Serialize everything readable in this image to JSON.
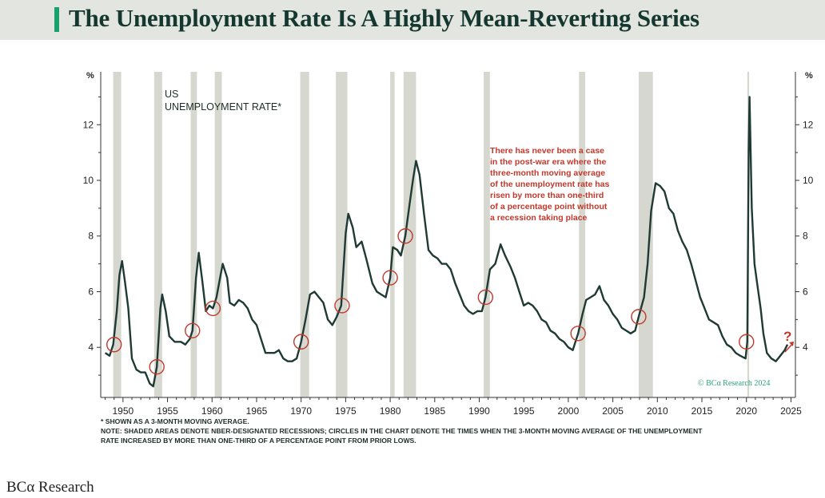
{
  "title": "The Unemployment Rate Is A Highly Mean-Reverting Series",
  "brand": "BCα Research",
  "footnotes": [
    "* SHOWN AS A 3-MONTH MOVING AVERAGE.",
    "NOTE: SHADED AREAS DENOTE NBER-DESIGNATED RECESSIONS; CIRCLES IN THE CHART DENOTE THE TIMES WHEN THE 3-MONTH MOVING AVERAGE OF THE UNEMPLOYMENT",
    "RATE INCREASED BY MORE THAN ONE-THIRD OF A PERCENTAGE POINT FROM PRIOR LOWS."
  ],
  "colors": {
    "line": "#1f3a34",
    "recession": "#d6d8d0",
    "circle": "#c0392b",
    "annotation": "#c0392b",
    "accent": "#1aa06a"
  },
  "chart_data": {
    "type": "line",
    "series_label": [
      "US",
      "UNEMPLOYMENT RATE*"
    ],
    "unit_left": "%",
    "unit_right": "%",
    "xlim": [
      1947.5,
      2025.5
    ],
    "ylim": [
      2.2,
      13.9
    ],
    "x_ticks": [
      1950,
      1955,
      1960,
      1965,
      1970,
      1975,
      1980,
      1985,
      1990,
      1995,
      2000,
      2005,
      2010,
      2015,
      2020,
      2025
    ],
    "y_ticks": [
      4,
      6,
      8,
      10,
      12
    ],
    "grid": false,
    "annotation": [
      "There has never been a case",
      "in the post-war era where the",
      "three-month moving average",
      "of the unemployment rate has",
      "risen by more than one-third",
      "of a percentage point without",
      "a recession taking place"
    ],
    "copyright": "© BCα Research 2024",
    "question_mark": "?",
    "recessions": [
      [
        1948.9,
        1949.8
      ],
      [
        1953.5,
        1954.4
      ],
      [
        1957.6,
        1958.3
      ],
      [
        1960.3,
        1961.1
      ],
      [
        1969.9,
        1970.9
      ],
      [
        1973.9,
        1975.2
      ],
      [
        1980.0,
        1980.5
      ],
      [
        1981.5,
        1982.9
      ],
      [
        1990.5,
        1991.2
      ],
      [
        2001.2,
        2001.9
      ],
      [
        2007.9,
        2009.5
      ],
      [
        2020.1,
        2020.3
      ]
    ],
    "circles": [
      [
        1949.0,
        4.1
      ],
      [
        1953.8,
        3.3
      ],
      [
        1957.8,
        4.6
      ],
      [
        1960.1,
        5.4
      ],
      [
        1970.0,
        4.2
      ],
      [
        1974.6,
        5.5
      ],
      [
        1980.0,
        6.5
      ],
      [
        1981.7,
        8.0
      ],
      [
        1990.7,
        5.8
      ],
      [
        2001.1,
        4.5
      ],
      [
        2007.9,
        5.1
      ],
      [
        2020.0,
        4.2
      ]
    ],
    "series": [
      {
        "values": [
          [
            1948.0,
            3.8
          ],
          [
            1948.5,
            3.7
          ],
          [
            1948.9,
            4.1
          ],
          [
            1949.3,
            5.3
          ],
          [
            1949.6,
            6.6
          ],
          [
            1949.9,
            7.1
          ],
          [
            1950.2,
            6.4
          ],
          [
            1950.6,
            5.4
          ],
          [
            1951.0,
            3.6
          ],
          [
            1951.5,
            3.2
          ],
          [
            1952.0,
            3.1
          ],
          [
            1952.5,
            3.1
          ],
          [
            1953.0,
            2.7
          ],
          [
            1953.4,
            2.6
          ],
          [
            1953.8,
            3.3
          ],
          [
            1954.2,
            5.4
          ],
          [
            1954.4,
            5.9
          ],
          [
            1954.8,
            5.3
          ],
          [
            1955.2,
            4.4
          ],
          [
            1955.8,
            4.2
          ],
          [
            1956.5,
            4.2
          ],
          [
            1957.0,
            4.1
          ],
          [
            1957.5,
            4.3
          ],
          [
            1957.8,
            4.6
          ],
          [
            1958.2,
            6.5
          ],
          [
            1958.5,
            7.4
          ],
          [
            1958.9,
            6.4
          ],
          [
            1959.3,
            5.3
          ],
          [
            1959.7,
            5.5
          ],
          [
            1960.1,
            5.4
          ],
          [
            1960.5,
            5.8
          ],
          [
            1960.9,
            6.5
          ],
          [
            1961.2,
            7.0
          ],
          [
            1961.7,
            6.5
          ],
          [
            1962.0,
            5.6
          ],
          [
            1962.5,
            5.5
          ],
          [
            1963.0,
            5.7
          ],
          [
            1963.5,
            5.6
          ],
          [
            1964.0,
            5.4
          ],
          [
            1964.5,
            5.0
          ],
          [
            1965.0,
            4.8
          ],
          [
            1965.5,
            4.3
          ],
          [
            1966.0,
            3.8
          ],
          [
            1966.5,
            3.8
          ],
          [
            1967.0,
            3.8
          ],
          [
            1967.5,
            3.9
          ],
          [
            1968.0,
            3.6
          ],
          [
            1968.5,
            3.5
          ],
          [
            1969.0,
            3.5
          ],
          [
            1969.5,
            3.6
          ],
          [
            1970.0,
            4.2
          ],
          [
            1970.5,
            5.0
          ],
          [
            1971.0,
            5.9
          ],
          [
            1971.5,
            6.0
          ],
          [
            1972.0,
            5.8
          ],
          [
            1972.5,
            5.6
          ],
          [
            1973.0,
            5.0
          ],
          [
            1973.5,
            4.8
          ],
          [
            1974.0,
            5.1
          ],
          [
            1974.5,
            5.5
          ],
          [
            1975.0,
            8.1
          ],
          [
            1975.3,
            8.8
          ],
          [
            1975.8,
            8.3
          ],
          [
            1976.2,
            7.6
          ],
          [
            1976.8,
            7.8
          ],
          [
            1977.3,
            7.2
          ],
          [
            1978.0,
            6.3
          ],
          [
            1978.5,
            6.0
          ],
          [
            1979.0,
            5.9
          ],
          [
            1979.5,
            5.8
          ],
          [
            1980.0,
            6.5
          ],
          [
            1980.3,
            7.6
          ],
          [
            1980.8,
            7.5
          ],
          [
            1981.2,
            7.3
          ],
          [
            1981.7,
            8.0
          ],
          [
            1982.2,
            9.2
          ],
          [
            1982.6,
            10.1
          ],
          [
            1982.9,
            10.7
          ],
          [
            1983.3,
            10.2
          ],
          [
            1983.8,
            8.8
          ],
          [
            1984.3,
            7.5
          ],
          [
            1984.8,
            7.3
          ],
          [
            1985.3,
            7.2
          ],
          [
            1985.8,
            7.0
          ],
          [
            1986.3,
            7.0
          ],
          [
            1986.8,
            6.8
          ],
          [
            1987.3,
            6.3
          ],
          [
            1987.8,
            5.9
          ],
          [
            1988.3,
            5.5
          ],
          [
            1988.8,
            5.3
          ],
          [
            1989.3,
            5.2
          ],
          [
            1989.8,
            5.3
          ],
          [
            1990.3,
            5.3
          ],
          [
            1990.7,
            5.8
          ],
          [
            1991.2,
            6.8
          ],
          [
            1991.8,
            7.0
          ],
          [
            1992.4,
            7.7
          ],
          [
            1992.9,
            7.3
          ],
          [
            1993.5,
            6.9
          ],
          [
            1994.0,
            6.5
          ],
          [
            1994.5,
            6.0
          ],
          [
            1995.0,
            5.5
          ],
          [
            1995.5,
            5.6
          ],
          [
            1996.0,
            5.5
          ],
          [
            1996.5,
            5.3
          ],
          [
            1997.0,
            5.0
          ],
          [
            1997.5,
            4.9
          ],
          [
            1998.0,
            4.6
          ],
          [
            1998.5,
            4.5
          ],
          [
            1999.0,
            4.3
          ],
          [
            1999.5,
            4.2
          ],
          [
            2000.0,
            4.0
          ],
          [
            2000.5,
            3.9
          ],
          [
            2001.1,
            4.5
          ],
          [
            2001.6,
            5.2
          ],
          [
            2002.0,
            5.7
          ],
          [
            2002.5,
            5.8
          ],
          [
            2003.0,
            5.9
          ],
          [
            2003.5,
            6.2
          ],
          [
            2004.0,
            5.7
          ],
          [
            2004.5,
            5.5
          ],
          [
            2005.0,
            5.2
          ],
          [
            2005.5,
            5.0
          ],
          [
            2006.0,
            4.7
          ],
          [
            2006.5,
            4.6
          ],
          [
            2007.0,
            4.5
          ],
          [
            2007.5,
            4.6
          ],
          [
            2007.9,
            5.1
          ],
          [
            2008.5,
            5.8
          ],
          [
            2008.9,
            7.0
          ],
          [
            2009.3,
            8.9
          ],
          [
            2009.8,
            9.9
          ],
          [
            2010.3,
            9.8
          ],
          [
            2010.8,
            9.6
          ],
          [
            2011.3,
            9.0
          ],
          [
            2011.8,
            8.8
          ],
          [
            2012.3,
            8.2
          ],
          [
            2012.8,
            7.8
          ],
          [
            2013.3,
            7.5
          ],
          [
            2013.8,
            7.0
          ],
          [
            2014.3,
            6.4
          ],
          [
            2014.8,
            5.8
          ],
          [
            2015.3,
            5.4
          ],
          [
            2015.8,
            5.0
          ],
          [
            2016.3,
            4.9
          ],
          [
            2016.8,
            4.8
          ],
          [
            2017.3,
            4.4
          ],
          [
            2017.8,
            4.1
          ],
          [
            2018.3,
            4.0
          ],
          [
            2018.8,
            3.8
          ],
          [
            2019.3,
            3.7
          ],
          [
            2019.9,
            3.6
          ],
          [
            2020.1,
            4.2
          ],
          [
            2020.25,
            11.0
          ],
          [
            2020.35,
            13.0
          ],
          [
            2020.6,
            9.0
          ],
          [
            2020.9,
            7.0
          ],
          [
            2021.2,
            6.3
          ],
          [
            2021.6,
            5.4
          ],
          [
            2021.9,
            4.5
          ],
          [
            2022.3,
            3.8
          ],
          [
            2022.8,
            3.6
          ],
          [
            2023.3,
            3.5
          ],
          [
            2023.8,
            3.7
          ],
          [
            2024.3,
            3.9
          ],
          [
            2024.6,
            4.1
          ]
        ]
      }
    ]
  }
}
